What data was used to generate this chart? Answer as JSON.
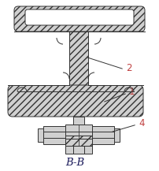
{
  "title": "B-B",
  "bg_color": "#ffffff",
  "line_color": "#333333",
  "fill_color": "#d0d0d0",
  "label_color": "#c04040",
  "font_size": 8.5,
  "hatch": "////",
  "lw": 0.7
}
